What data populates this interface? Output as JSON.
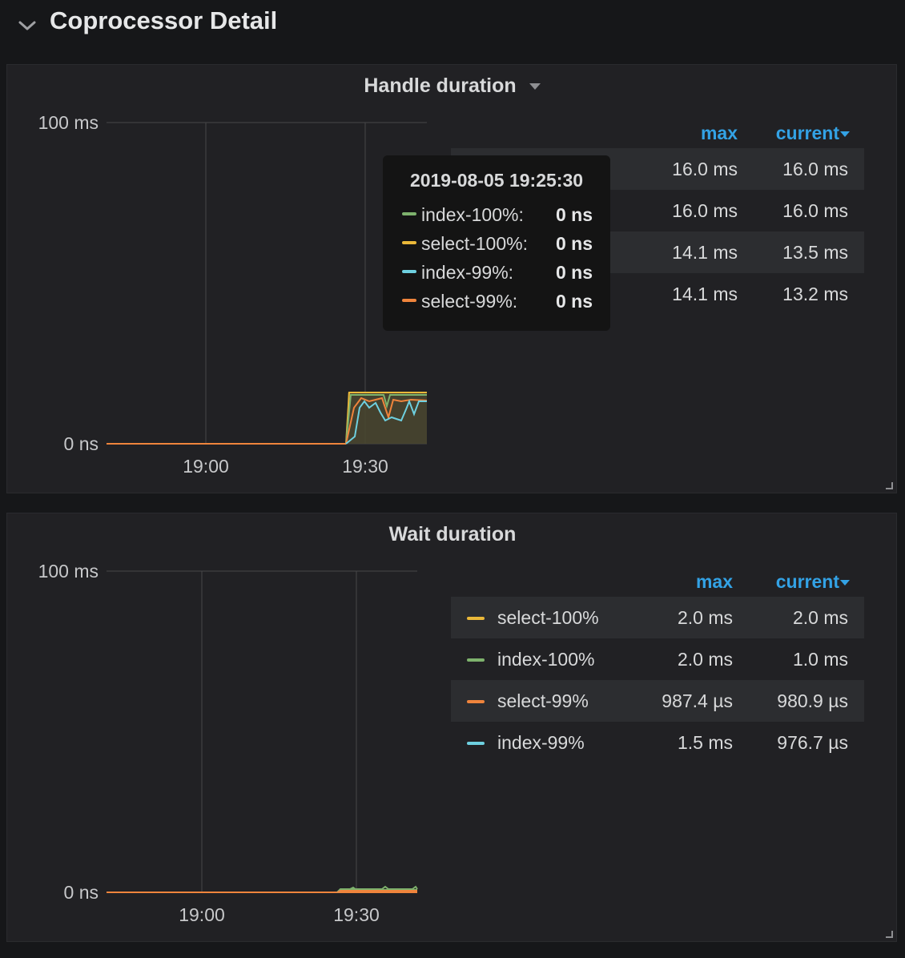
{
  "row": {
    "title": "Coprocessor Detail",
    "chevron_icon": "chevron-down-icon"
  },
  "panels": [
    {
      "title": "Handle duration",
      "menu_icon": "caret-down-icon",
      "chart_data": {
        "type": "line",
        "x_ticks": [
          "19:00",
          "19:30"
        ],
        "y_ticks": [
          "0 ns",
          "100 ms"
        ],
        "ylim": [
          0,
          100
        ],
        "y_unit": "ms",
        "series": [
          {
            "name": "index-100%",
            "color": "#7eb26d"
          },
          {
            "name": "select-100%",
            "color": "#eab839"
          },
          {
            "name": "index-99%",
            "color": "#6ed0e0"
          },
          {
            "name": "select-99%",
            "color": "#ef843c"
          }
        ],
        "grid": true
      },
      "legend": {
        "headers": {
          "max": "max",
          "current": "current"
        },
        "rows": [
          {
            "max": "16.0 ms",
            "current": "16.0 ms"
          },
          {
            "max": "16.0 ms",
            "current": "16.0 ms"
          },
          {
            "max": "14.1 ms",
            "current": "13.5 ms"
          },
          {
            "max": "14.1 ms",
            "current": "13.2 ms"
          }
        ]
      },
      "tooltip": {
        "time": "2019-08-05 19:25:30",
        "rows": [
          {
            "name": "index-100%:",
            "value": "0 ns",
            "color": "#7eb26d"
          },
          {
            "name": "select-100%:",
            "value": "0 ns",
            "color": "#eab839"
          },
          {
            "name": "index-99%:",
            "value": "0 ns",
            "color": "#6ed0e0"
          },
          {
            "name": "select-99%:",
            "value": "0 ns",
            "color": "#ef843c"
          }
        ]
      }
    },
    {
      "title": "Wait duration",
      "chart_data": {
        "type": "line",
        "x_ticks": [
          "19:00",
          "19:30"
        ],
        "y_ticks": [
          "0 ns",
          "100 ms"
        ],
        "ylim": [
          0,
          100
        ],
        "y_unit": "ms",
        "series": [
          {
            "name": "select-100%",
            "color": "#eab839"
          },
          {
            "name": "index-100%",
            "color": "#7eb26d"
          },
          {
            "name": "select-99%",
            "color": "#ef843c"
          },
          {
            "name": "index-99%",
            "color": "#6ed0e0"
          }
        ],
        "grid": true
      },
      "legend": {
        "headers": {
          "max": "max",
          "current": "current"
        },
        "rows": [
          {
            "name": "select-100%",
            "max": "2.0 ms",
            "current": "2.0 ms",
            "color": "#eab839"
          },
          {
            "name": "index-100%",
            "max": "2.0 ms",
            "current": "1.0 ms",
            "color": "#7eb26d"
          },
          {
            "name": "select-99%",
            "max": "987.4 µs",
            "current": "980.9 µs",
            "color": "#ef843c"
          },
          {
            "name": "index-99%",
            "max": "1.5 ms",
            "current": "976.7 µs",
            "color": "#6ed0e0"
          }
        ]
      }
    }
  ]
}
